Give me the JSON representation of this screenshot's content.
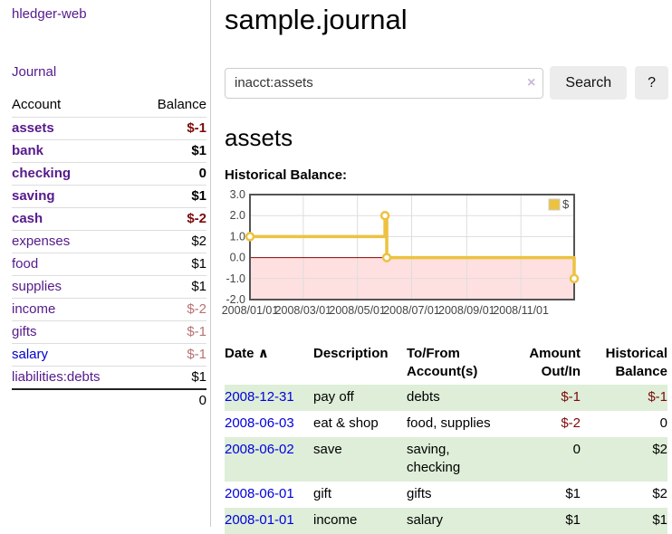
{
  "app": {
    "title": "hledger-web"
  },
  "sidebar": {
    "journal_link": "Journal",
    "accounts_table": {
      "account_header": "Account",
      "balance_header": "Balance",
      "rows": [
        {
          "account": "assets",
          "indent": 1,
          "bold": true,
          "balance": "$-1",
          "balance_class": "neg"
        },
        {
          "account": "bank",
          "indent": 2,
          "bold": true,
          "balance": "$1",
          "balance_class": "pos"
        },
        {
          "account": "checking",
          "indent": 3,
          "bold": true,
          "balance": "0",
          "balance_class": "pos"
        },
        {
          "account": "saving",
          "indent": 3,
          "bold": true,
          "balance": "$1",
          "balance_class": "pos"
        },
        {
          "account": "cash",
          "indent": 2,
          "bold": true,
          "balance": "$-2",
          "balance_class": "neg"
        },
        {
          "account": "expenses",
          "indent": 1,
          "bold": false,
          "balance": "$2",
          "balance_class": "pos"
        },
        {
          "account": "food",
          "indent": 2,
          "bold": false,
          "balance": "$1",
          "balance_class": "pos"
        },
        {
          "account": "supplies",
          "indent": 2,
          "bold": false,
          "balance": "$1",
          "balance_class": "pos"
        },
        {
          "account": "income",
          "indent": 1,
          "bold": false,
          "balance": "$-2",
          "balance_class": "neg-faded"
        },
        {
          "account": "gifts",
          "indent": 2,
          "bold": false,
          "balance": "$-1",
          "balance_class": "neg-faded"
        },
        {
          "account": "salary",
          "indent": 2,
          "bold": false,
          "link_style": "unvisited",
          "balance": "$-1",
          "balance_class": "neg-faded"
        },
        {
          "account": "liabilities:debts",
          "indent": 1,
          "bold": false,
          "balance": "$1",
          "balance_class": "pos"
        }
      ],
      "total": "0"
    }
  },
  "main": {
    "title": "sample.journal",
    "search": {
      "value": "inacct:assets",
      "clear_icon": "×",
      "button_label": "Search",
      "help_label": "?"
    },
    "account_heading": "assets",
    "chart_label": "Historical Balance:"
  },
  "chart_data": {
    "type": "line",
    "step": true,
    "title": "Historical Balance",
    "series": [
      {
        "name": "$",
        "color": "#edc240",
        "points": [
          {
            "x": "2008-01-01",
            "day": 0,
            "y": 1
          },
          {
            "x": "2008-06-01",
            "day": 152,
            "y": 2
          },
          {
            "x": "2008-06-03",
            "day": 154,
            "y": 0
          },
          {
            "x": "2008-12-31",
            "day": 365,
            "y": -1
          }
        ]
      }
    ],
    "x_ticks": [
      {
        "label": "2008/01/01",
        "day": 0
      },
      {
        "label": "2008/03/01",
        "day": 60
      },
      {
        "label": "2008/05/01",
        "day": 121
      },
      {
        "label": "2008/07/01",
        "day": 182
      },
      {
        "label": "2008/09/01",
        "day": 244
      },
      {
        "label": "2008/11/01",
        "day": 305
      }
    ],
    "y_ticks": [
      {
        "v": -2,
        "label": "-2.0"
      },
      {
        "v": -1,
        "label": "-1.0"
      },
      {
        "v": 0,
        "label": "0.0"
      },
      {
        "v": 1,
        "label": "1.0"
      },
      {
        "v": 2,
        "label": "2.0"
      },
      {
        "v": 3,
        "label": "3.0"
      }
    ],
    "ylim": [
      -2,
      3
    ],
    "xlim_days": [
      0,
      365
    ],
    "grid": true,
    "legend_position": "top-right",
    "colors": {
      "negative_region": "rgba(255,0,0,0.12)",
      "zero_line": "#8b0000",
      "grid_line": "#dddddd",
      "border": "#545454",
      "tick_text": "#444444",
      "marker_fill": "#ffffff",
      "legend_box_border": "#cccccc"
    }
  },
  "transactions": {
    "headers": {
      "date": "Date",
      "sort_icon": "∧",
      "description": "Description",
      "tofrom": "To/From Account(s)",
      "amount": "Amount Out/In",
      "historical": "Historical Balance"
    },
    "rows": [
      {
        "date": "2008-12-31",
        "description": "pay off",
        "tofrom": "debts",
        "amount": "$-1",
        "amount_class": "neg",
        "historical": "$-1",
        "historical_class": "neg",
        "shade": true
      },
      {
        "date": "2008-06-03",
        "description": "eat & shop",
        "tofrom": "food, supplies",
        "amount": "$-2",
        "amount_class": "neg",
        "historical": "0",
        "historical_class": "pos",
        "shade": false
      },
      {
        "date": "2008-06-02",
        "description": "save",
        "tofrom": "saving, checking",
        "amount": "0",
        "amount_class": "pos",
        "historical": "$2",
        "historical_class": "pos",
        "shade": true
      },
      {
        "date": "2008-06-01",
        "description": "gift",
        "tofrom": "gifts",
        "amount": "$1",
        "amount_class": "pos",
        "historical": "$2",
        "historical_class": "pos",
        "shade": false
      },
      {
        "date": "2008-01-01",
        "description": "income",
        "tofrom": "salary",
        "amount": "$1",
        "amount_class": "pos",
        "historical": "$1",
        "historical_class": "pos",
        "shade": true
      }
    ]
  }
}
